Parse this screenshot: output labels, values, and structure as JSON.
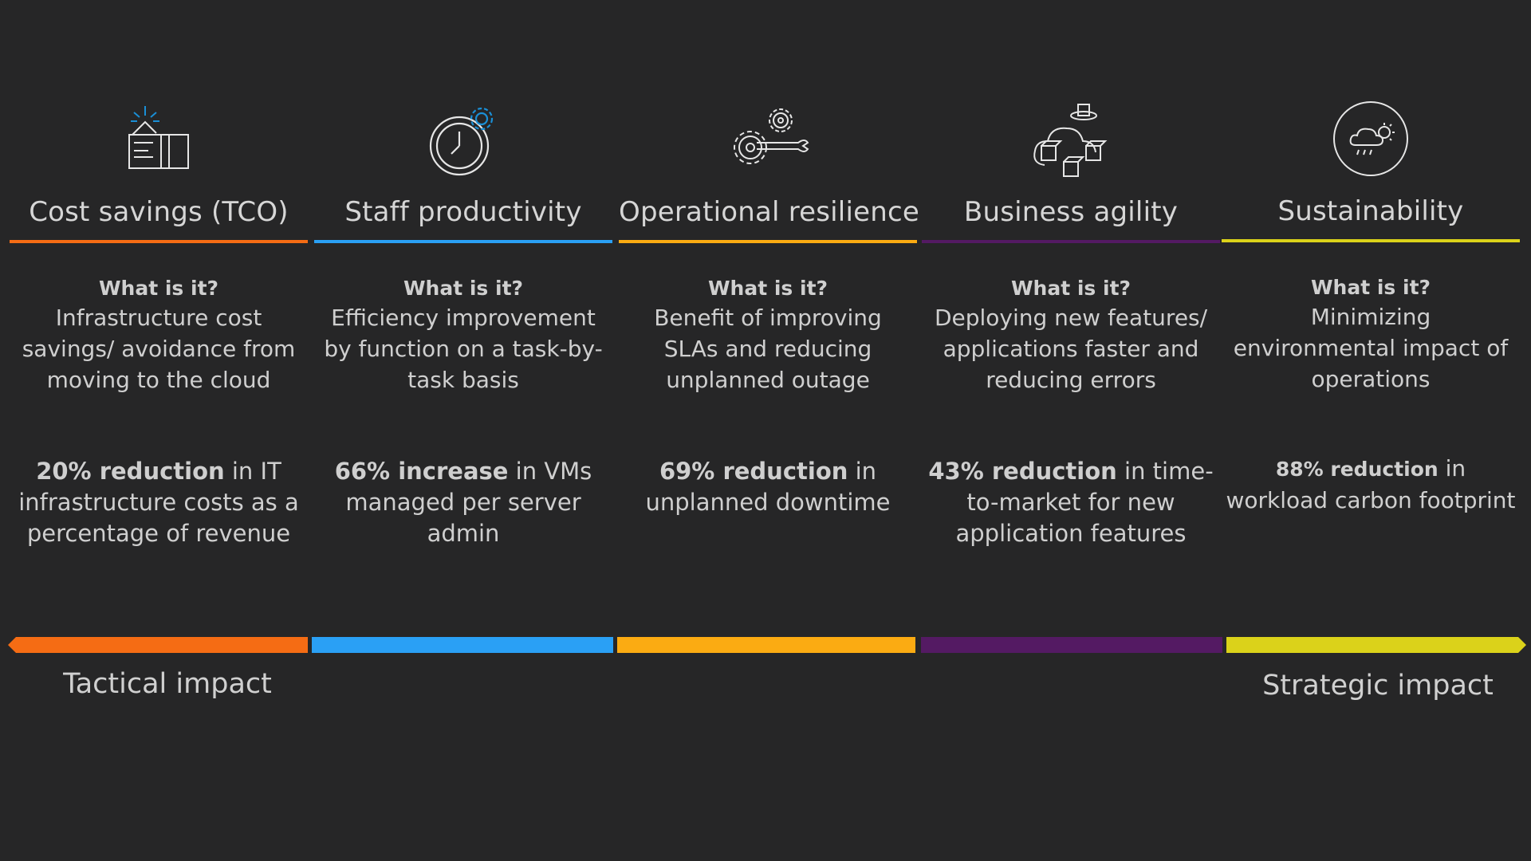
{
  "colors": {
    "background": "#262627",
    "cost": "#f56c14",
    "staff": "#2aa0f5",
    "resilience": "#fbab12",
    "agility": "#541a63",
    "sustainability": "#dbd21a",
    "icon_accent": "#1a8fd6"
  },
  "columns": [
    {
      "icon": "wallet-card-icon",
      "title": "Cost savings (TCO)",
      "what_label": "What is it?",
      "what_text": "Infrastructure cost savings/ avoidance from moving to the cloud",
      "stat_bold": "20% reduction",
      "stat_rest": " in IT infrastructure costs as a percentage of revenue"
    },
    {
      "icon": "clock-gear-icon",
      "title": "Staff productivity",
      "what_label": "What is it?",
      "what_text": "Efficiency improvement by function on a task-by-task basis",
      "stat_bold": "66% increase",
      "stat_rest": " in VMs managed per server admin"
    },
    {
      "icon": "gears-wrench-icon",
      "title": "Operational resilience",
      "what_label": "What is it?",
      "what_text": "Benefit of improving SLAs and reducing unplanned outage",
      "stat_bold": "69% reduction",
      "stat_rest": " in unplanned downtime"
    },
    {
      "icon": "cloud-cubes-icon",
      "title": "Business agility",
      "what_label": "What is it?",
      "what_text": "Deploying new features/ applications faster and reducing errors",
      "stat_bold": "43% reduction",
      "stat_rest": " in time-to-market for new application features"
    },
    {
      "icon": "weather-circle-icon",
      "title": "Sustainability",
      "what_label": "What is it?",
      "what_text": "Minimizing environmental impact of operations",
      "stat_bold": "88% reduction",
      "stat_rest": " in workload carbon footprint"
    }
  ],
  "impact": {
    "left": "Tactical impact",
    "right": "Strategic impact"
  }
}
